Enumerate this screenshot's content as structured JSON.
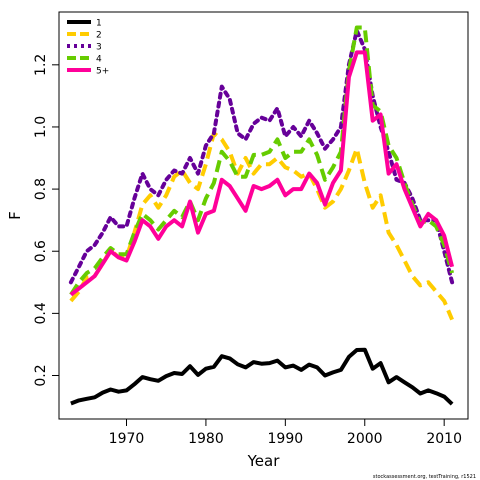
{
  "chart_data": {
    "type": "line",
    "xlabel": "Year",
    "ylabel": "F",
    "xlim": [
      1961.5,
      2013
    ],
    "ylim": [
      0.06,
      1.37
    ],
    "xticks": [
      1970,
      1980,
      1990,
      2000,
      2010
    ],
    "yticks": [
      0.2,
      0.4,
      0.6,
      0.8,
      1.0,
      1.2
    ],
    "ytick_labels": [
      "0.2",
      "0.4",
      "0.6",
      "0.8",
      "1.0",
      "1.2"
    ],
    "legend_position": "top-left",
    "grid": false,
    "credit": "stockassessment.org, testTraining, r1521",
    "x": [
      1963,
      1964,
      1965,
      1966,
      1967,
      1968,
      1969,
      1970,
      1971,
      1972,
      1973,
      1974,
      1975,
      1976,
      1977,
      1978,
      1979,
      1980,
      1981,
      1982,
      1983,
      1984,
      1985,
      1986,
      1987,
      1988,
      1989,
      1990,
      1991,
      1992,
      1993,
      1994,
      1995,
      1996,
      1997,
      1998,
      1999,
      2000,
      2001,
      2002,
      2003,
      2004,
      2005,
      2006,
      2007,
      2008,
      2009,
      2010,
      2011
    ],
    "series": [
      {
        "name": "1",
        "color": "#000000",
        "dash": "solid",
        "values": [
          0.11,
          0.12,
          0.125,
          0.13,
          0.145,
          0.155,
          0.148,
          0.152,
          0.172,
          0.195,
          0.188,
          0.183,
          0.198,
          0.208,
          0.205,
          0.23,
          0.202,
          0.222,
          0.228,
          0.262,
          0.255,
          0.236,
          0.226,
          0.243,
          0.238,
          0.24,
          0.248,
          0.226,
          0.232,
          0.218,
          0.235,
          0.226,
          0.2,
          0.21,
          0.218,
          0.26,
          0.282,
          0.283,
          0.222,
          0.24,
          0.178,
          0.195,
          0.178,
          0.162,
          0.142,
          0.152,
          0.143,
          0.132,
          0.108
        ]
      },
      {
        "name": "2",
        "color": "#FFCC00",
        "dash": "dashed",
        "values": [
          0.44,
          0.47,
          0.515,
          0.52,
          0.56,
          0.605,
          0.58,
          0.58,
          0.66,
          0.75,
          0.78,
          0.74,
          0.78,
          0.84,
          0.86,
          0.82,
          0.8,
          0.88,
          0.98,
          0.96,
          0.92,
          0.85,
          0.9,
          0.85,
          0.88,
          0.88,
          0.9,
          0.87,
          0.86,
          0.84,
          0.85,
          0.8,
          0.74,
          0.76,
          0.8,
          0.86,
          0.93,
          0.82,
          0.74,
          0.78,
          0.66,
          0.62,
          0.57,
          0.52,
          0.49,
          0.5,
          0.47,
          0.44,
          0.38
        ]
      },
      {
        "name": "3",
        "color": "#660099",
        "dash": "dotted",
        "values": [
          0.5,
          0.55,
          0.6,
          0.62,
          0.66,
          0.71,
          0.68,
          0.68,
          0.77,
          0.85,
          0.8,
          0.78,
          0.83,
          0.86,
          0.85,
          0.9,
          0.85,
          0.94,
          0.98,
          1.13,
          1.09,
          0.98,
          0.96,
          1.01,
          1.03,
          1.02,
          1.06,
          0.97,
          1.0,
          0.97,
          1.02,
          0.98,
          0.93,
          0.96,
          1.0,
          1.2,
          1.31,
          1.25,
          1.1,
          1.0,
          0.92,
          0.83,
          0.82,
          0.77,
          0.7,
          0.7,
          0.7,
          0.6,
          0.5
        ]
      },
      {
        "name": "4",
        "color": "#66CC00",
        "dash": "dashed",
        "values": [
          0.46,
          0.5,
          0.53,
          0.545,
          0.58,
          0.61,
          0.59,
          0.59,
          0.66,
          0.72,
          0.7,
          0.67,
          0.7,
          0.73,
          0.71,
          0.76,
          0.7,
          0.77,
          0.82,
          0.92,
          0.89,
          0.84,
          0.84,
          0.91,
          0.91,
          0.92,
          0.96,
          0.9,
          0.92,
          0.92,
          0.96,
          0.91,
          0.83,
          0.87,
          0.92,
          1.18,
          1.32,
          1.32,
          1.07,
          1.05,
          0.94,
          0.9,
          0.82,
          0.75,
          0.69,
          0.7,
          0.68,
          0.62,
          0.53
        ]
      },
      {
        "name": "5+",
        "color": "#FF0099",
        "dash": "solid",
        "values": [
          0.46,
          0.48,
          0.5,
          0.52,
          0.56,
          0.6,
          0.58,
          0.57,
          0.63,
          0.7,
          0.68,
          0.64,
          0.68,
          0.7,
          0.68,
          0.76,
          0.66,
          0.72,
          0.73,
          0.83,
          0.81,
          0.77,
          0.73,
          0.81,
          0.8,
          0.81,
          0.83,
          0.78,
          0.8,
          0.8,
          0.85,
          0.82,
          0.75,
          0.82,
          0.86,
          1.16,
          1.24,
          1.24,
          1.02,
          1.04,
          0.85,
          0.88,
          0.8,
          0.74,
          0.68,
          0.72,
          0.7,
          0.65,
          0.55
        ]
      }
    ]
  }
}
